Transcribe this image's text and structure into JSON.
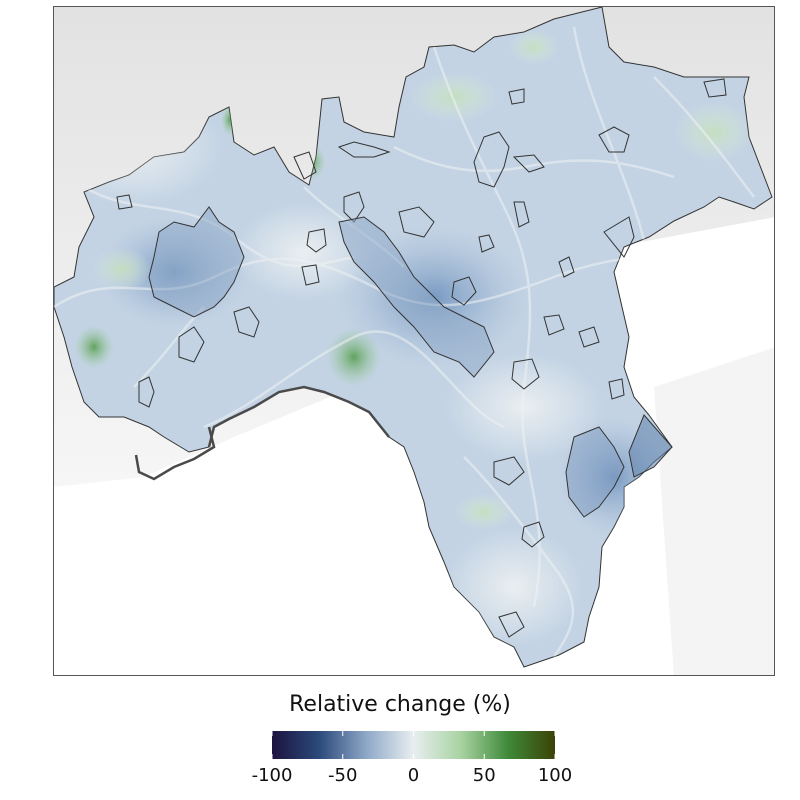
{
  "legend": {
    "title": "Relative change (%)",
    "min": -100,
    "max": 100,
    "ticks": [
      {
        "value": -100,
        "label": "-100"
      },
      {
        "value": -50,
        "label": "-50"
      },
      {
        "value": 0,
        "label": "0"
      },
      {
        "value": 50,
        "label": "50"
      },
      {
        "value": 100,
        "label": "100"
      }
    ],
    "colors": [
      "#1d1340",
      "#2b4a7a",
      "#8fa8c8",
      "#e8eef0",
      "#a9d3a2",
      "#3f8a3a",
      "#3b4205"
    ]
  },
  "map": {
    "basemap": "grey terrain relief",
    "fill_scale": "diverging blue-white-green",
    "background_color": "#ffffff",
    "land_color": "#c3d3e4"
  }
}
